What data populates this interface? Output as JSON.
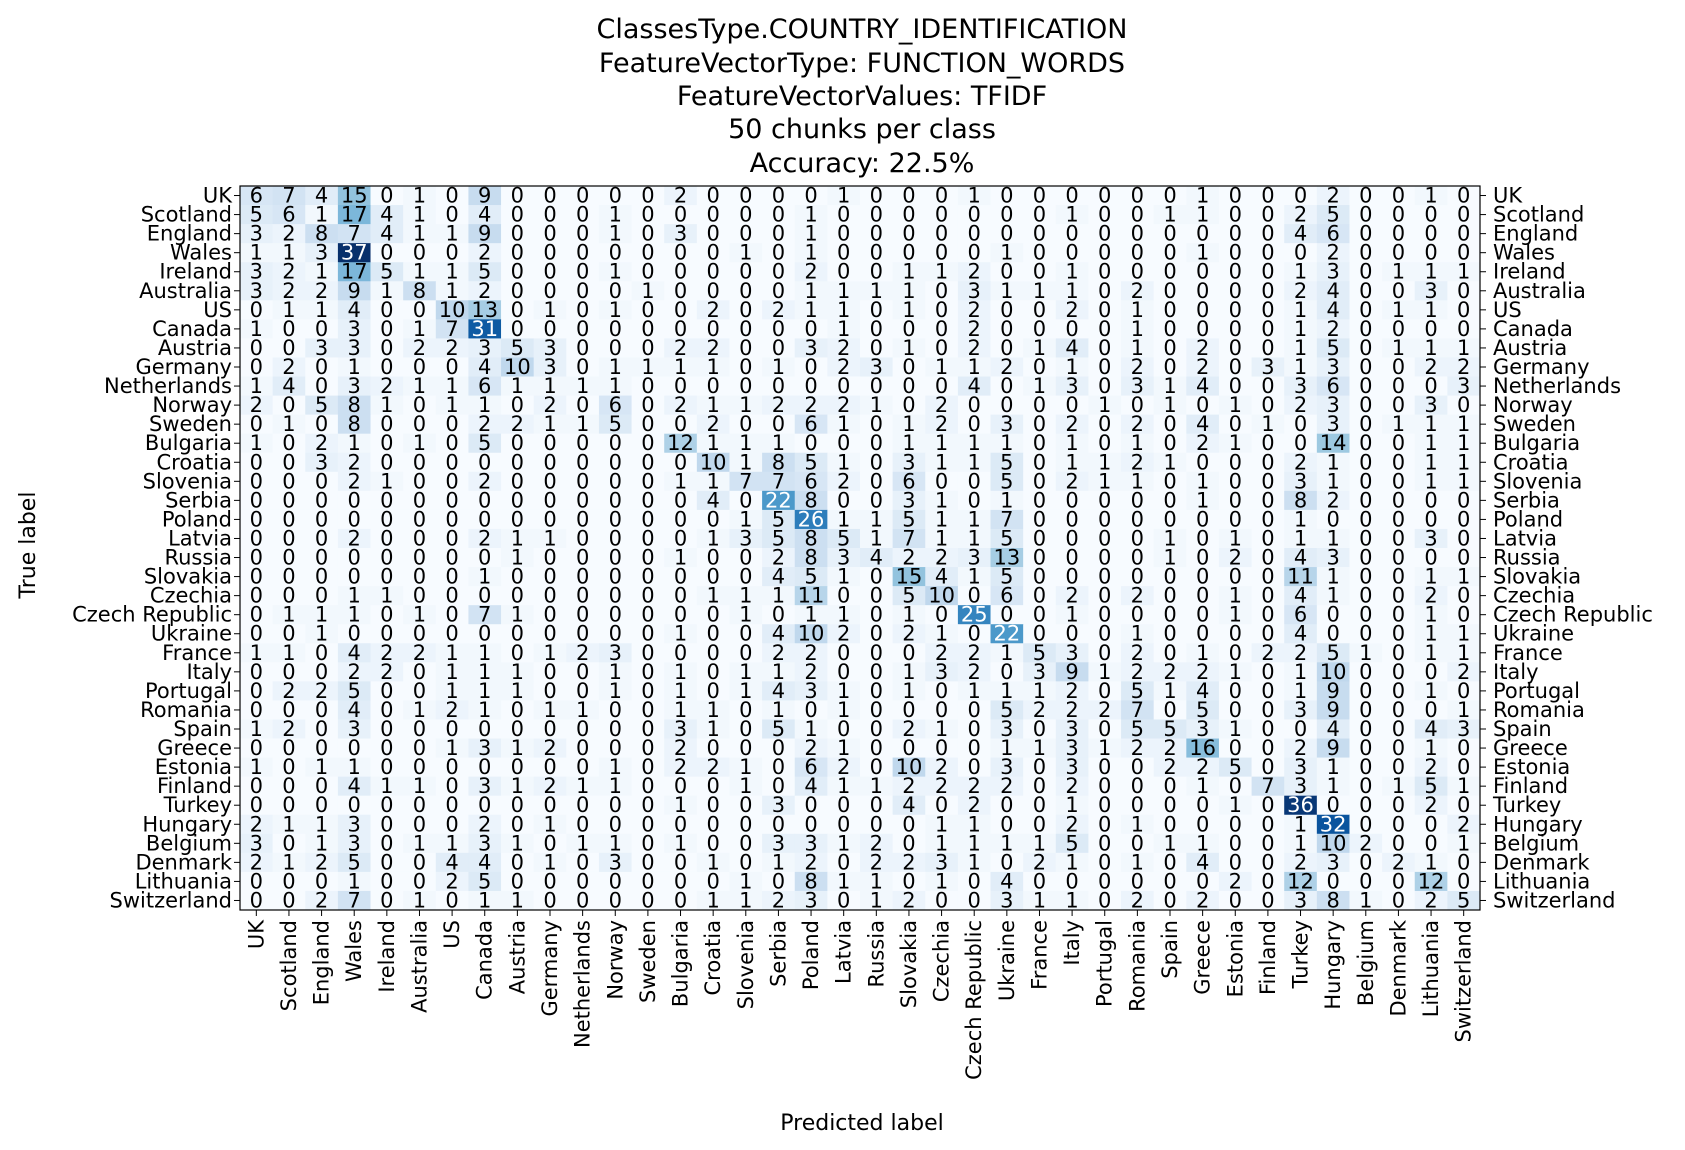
{
  "chart_data": {
    "type": "heatmap",
    "title": [
      "ClassesType.COUNTRY_IDENTIFICATION",
      "FeatureVectorType: FUNCTION_WORDS",
      "FeatureVectorValues: TFIDF",
      "50 chunks per class",
      "Accuracy: 22.5%"
    ],
    "xlabel": "Predicted label",
    "ylabel": "True label",
    "colormap": "Blues",
    "vmin": 0,
    "vmax": 37,
    "labels": [
      "UK",
      "Scotland",
      "England",
      "Wales",
      "Ireland",
      "Australia",
      "US",
      "Canada",
      "Austria",
      "Germany",
      "Netherlands",
      "Norway",
      "Sweden",
      "Bulgaria",
      "Croatia",
      "Slovenia",
      "Serbia",
      "Poland",
      "Latvia",
      "Russia",
      "Slovakia",
      "Czechia",
      "Czech Republic",
      "Ukraine",
      "France",
      "Italy",
      "Portugal",
      "Romania",
      "Spain",
      "Greece",
      "Estonia",
      "Finland",
      "Turkey",
      "Hungary",
      "Belgium",
      "Denmark",
      "Lithuania",
      "Switzerland"
    ],
    "matrix": [
      [
        6,
        7,
        4,
        15,
        0,
        1,
        0,
        9,
        0,
        0,
        0,
        0,
        0,
        2,
        0,
        0,
        0,
        0,
        1,
        0,
        0,
        0,
        1,
        0,
        0,
        0,
        0,
        0,
        0,
        1,
        0,
        0,
        0,
        2,
        0,
        0,
        1,
        0
      ],
      [
        5,
        6,
        1,
        17,
        4,
        1,
        0,
        4,
        0,
        0,
        0,
        1,
        0,
        0,
        0,
        0,
        0,
        1,
        0,
        0,
        0,
        0,
        0,
        0,
        0,
        1,
        0,
        0,
        1,
        1,
        0,
        0,
        2,
        5,
        0,
        0,
        0,
        0
      ],
      [
        3,
        2,
        8,
        7,
        4,
        1,
        1,
        9,
        0,
        0,
        0,
        1,
        0,
        3,
        0,
        0,
        0,
        1,
        0,
        0,
        0,
        0,
        0,
        0,
        0,
        0,
        0,
        0,
        0,
        0,
        0,
        0,
        4,
        6,
        0,
        0,
        0,
        0
      ],
      [
        1,
        1,
        3,
        37,
        0,
        0,
        0,
        2,
        0,
        0,
        0,
        0,
        0,
        0,
        0,
        1,
        0,
        1,
        0,
        0,
        0,
        0,
        0,
        1,
        0,
        0,
        0,
        0,
        0,
        1,
        0,
        0,
        0,
        2,
        0,
        0,
        0,
        0
      ],
      [
        3,
        2,
        1,
        17,
        5,
        1,
        1,
        5,
        0,
        0,
        0,
        1,
        0,
        0,
        0,
        0,
        0,
        2,
        0,
        0,
        1,
        1,
        2,
        0,
        0,
        1,
        0,
        0,
        0,
        0,
        0,
        0,
        1,
        3,
        0,
        1,
        1,
        1
      ],
      [
        3,
        2,
        2,
        9,
        1,
        8,
        1,
        2,
        0,
        0,
        0,
        0,
        1,
        0,
        0,
        0,
        0,
        1,
        1,
        1,
        1,
        0,
        3,
        1,
        1,
        1,
        0,
        2,
        0,
        0,
        0,
        0,
        2,
        4,
        0,
        0,
        3,
        0
      ],
      [
        0,
        1,
        1,
        4,
        0,
        0,
        10,
        13,
        0,
        1,
        0,
        1,
        0,
        0,
        2,
        0,
        2,
        1,
        1,
        0,
        1,
        0,
        2,
        0,
        0,
        2,
        0,
        1,
        0,
        0,
        0,
        0,
        1,
        4,
        0,
        1,
        1,
        0
      ],
      [
        1,
        0,
        0,
        3,
        0,
        1,
        7,
        31,
        0,
        0,
        0,
        0,
        0,
        0,
        0,
        0,
        0,
        0,
        1,
        0,
        0,
        0,
        2,
        0,
        0,
        0,
        0,
        1,
        0,
        0,
        0,
        0,
        1,
        2,
        0,
        0,
        0,
        0
      ],
      [
        0,
        0,
        3,
        3,
        0,
        2,
        2,
        3,
        5,
        3,
        0,
        0,
        0,
        2,
        2,
        0,
        0,
        3,
        2,
        0,
        1,
        0,
        2,
        0,
        1,
        4,
        0,
        1,
        0,
        2,
        0,
        0,
        1,
        5,
        0,
        1,
        1,
        1
      ],
      [
        0,
        2,
        0,
        1,
        0,
        0,
        0,
        4,
        10,
        3,
        0,
        1,
        1,
        1,
        1,
        0,
        1,
        0,
        2,
        3,
        0,
        1,
        1,
        2,
        0,
        1,
        0,
        2,
        0,
        2,
        0,
        3,
        1,
        3,
        0,
        0,
        2,
        2
      ],
      [
        1,
        4,
        0,
        3,
        2,
        1,
        1,
        6,
        1,
        1,
        1,
        1,
        0,
        0,
        0,
        0,
        0,
        0,
        0,
        0,
        0,
        0,
        4,
        0,
        1,
        3,
        0,
        3,
        1,
        4,
        0,
        0,
        3,
        6,
        0,
        0,
        0,
        3
      ],
      [
        2,
        0,
        5,
        8,
        1,
        0,
        1,
        1,
        0,
        2,
        0,
        6,
        0,
        2,
        1,
        1,
        2,
        2,
        2,
        1,
        0,
        2,
        0,
        0,
        0,
        0,
        1,
        0,
        1,
        0,
        1,
        0,
        2,
        3,
        0,
        0,
        3,
        0
      ],
      [
        0,
        1,
        0,
        8,
        0,
        0,
        0,
        2,
        2,
        1,
        1,
        5,
        0,
        0,
        2,
        0,
        0,
        6,
        1,
        0,
        1,
        2,
        0,
        3,
        0,
        2,
        0,
        2,
        0,
        4,
        0,
        1,
        0,
        3,
        0,
        1,
        1,
        1
      ],
      [
        1,
        0,
        2,
        1,
        0,
        1,
        0,
        5,
        0,
        0,
        0,
        0,
        0,
        12,
        1,
        1,
        1,
        0,
        0,
        0,
        1,
        1,
        1,
        1,
        0,
        1,
        0,
        1,
        0,
        2,
        1,
        0,
        0,
        14,
        0,
        0,
        1,
        1
      ],
      [
        0,
        0,
        3,
        2,
        0,
        0,
        0,
        0,
        0,
        0,
        0,
        0,
        0,
        0,
        10,
        1,
        8,
        5,
        1,
        0,
        3,
        1,
        1,
        5,
        0,
        1,
        1,
        2,
        1,
        0,
        0,
        0,
        2,
        1,
        0,
        0,
        1,
        1
      ],
      [
        0,
        0,
        0,
        2,
        1,
        0,
        0,
        2,
        0,
        0,
        0,
        0,
        0,
        1,
        1,
        7,
        7,
        6,
        2,
        0,
        6,
        0,
        0,
        5,
        0,
        2,
        1,
        1,
        0,
        1,
        0,
        0,
        3,
        1,
        0,
        0,
        1,
        1
      ],
      [
        0,
        0,
        0,
        0,
        0,
        0,
        0,
        0,
        0,
        0,
        0,
        0,
        0,
        0,
        4,
        0,
        22,
        8,
        0,
        0,
        3,
        1,
        0,
        1,
        0,
        0,
        0,
        0,
        0,
        1,
        0,
        0,
        8,
        2,
        0,
        0,
        0,
        0
      ],
      [
        0,
        0,
        0,
        0,
        0,
        0,
        0,
        0,
        0,
        0,
        0,
        0,
        0,
        0,
        0,
        1,
        5,
        26,
        1,
        1,
        5,
        1,
        1,
        7,
        0,
        0,
        0,
        0,
        0,
        0,
        0,
        0,
        1,
        0,
        0,
        0,
        0,
        0
      ],
      [
        0,
        0,
        0,
        2,
        0,
        0,
        0,
        2,
        1,
        1,
        0,
        0,
        0,
        0,
        1,
        3,
        5,
        8,
        5,
        1,
        7,
        1,
        1,
        5,
        0,
        0,
        0,
        0,
        1,
        0,
        1,
        0,
        1,
        1,
        0,
        0,
        3,
        0
      ],
      [
        0,
        0,
        0,
        0,
        0,
        0,
        0,
        0,
        1,
        0,
        0,
        0,
        0,
        1,
        0,
        0,
        2,
        8,
        3,
        4,
        2,
        2,
        3,
        13,
        0,
        0,
        0,
        0,
        1,
        0,
        2,
        0,
        4,
        3,
        0,
        0,
        0,
        0
      ],
      [
        0,
        0,
        0,
        0,
        0,
        0,
        0,
        1,
        0,
        0,
        0,
        0,
        0,
        0,
        0,
        0,
        4,
        5,
        1,
        0,
        15,
        4,
        1,
        5,
        0,
        0,
        0,
        0,
        0,
        0,
        0,
        0,
        11,
        1,
        0,
        0,
        1,
        1
      ],
      [
        0,
        0,
        0,
        1,
        1,
        0,
        0,
        0,
        0,
        0,
        0,
        0,
        0,
        0,
        1,
        1,
        1,
        11,
        0,
        0,
        5,
        10,
        0,
        6,
        0,
        2,
        0,
        2,
        0,
        0,
        1,
        0,
        4,
        1,
        0,
        0,
        2,
        0
      ],
      [
        0,
        1,
        1,
        1,
        0,
        1,
        0,
        7,
        1,
        0,
        0,
        0,
        0,
        0,
        0,
        1,
        0,
        1,
        1,
        0,
        1,
        0,
        25,
        0,
        0,
        1,
        0,
        0,
        0,
        0,
        1,
        0,
        6,
        0,
        0,
        0,
        1,
        0
      ],
      [
        0,
        0,
        1,
        0,
        0,
        0,
        0,
        0,
        0,
        0,
        0,
        0,
        0,
        1,
        0,
        0,
        4,
        10,
        2,
        0,
        2,
        1,
        0,
        22,
        0,
        0,
        0,
        1,
        0,
        0,
        0,
        0,
        4,
        0,
        0,
        0,
        1,
        1
      ],
      [
        1,
        1,
        0,
        4,
        2,
        2,
        1,
        1,
        0,
        1,
        2,
        3,
        0,
        0,
        0,
        0,
        2,
        2,
        0,
        0,
        0,
        2,
        2,
        1,
        5,
        3,
        0,
        2,
        0,
        1,
        0,
        2,
        2,
        5,
        1,
        0,
        1,
        1
      ],
      [
        0,
        0,
        0,
        2,
        2,
        0,
        1,
        1,
        1,
        0,
        0,
        1,
        0,
        1,
        0,
        1,
        1,
        2,
        0,
        0,
        1,
        3,
        2,
        0,
        3,
        9,
        1,
        2,
        2,
        2,
        1,
        0,
        1,
        10,
        0,
        0,
        0,
        2
      ],
      [
        0,
        2,
        2,
        5,
        0,
        0,
        1,
        1,
        1,
        0,
        0,
        1,
        0,
        1,
        0,
        1,
        4,
        3,
        1,
        0,
        1,
        0,
        1,
        1,
        1,
        2,
        0,
        5,
        1,
        4,
        0,
        0,
        1,
        9,
        0,
        0,
        1,
        0
      ],
      [
        0,
        0,
        0,
        4,
        0,
        1,
        2,
        1,
        0,
        1,
        1,
        0,
        0,
        1,
        1,
        0,
        1,
        0,
        1,
        0,
        0,
        0,
        0,
        5,
        2,
        2,
        2,
        7,
        0,
        5,
        0,
        0,
        3,
        9,
        0,
        0,
        0,
        1
      ],
      [
        1,
        2,
        0,
        3,
        0,
        0,
        0,
        0,
        0,
        0,
        0,
        0,
        0,
        3,
        1,
        0,
        5,
        1,
        0,
        0,
        2,
        1,
        0,
        3,
        0,
        3,
        0,
        5,
        5,
        3,
        1,
        0,
        0,
        4,
        0,
        0,
        4,
        3
      ],
      [
        0,
        0,
        0,
        0,
        0,
        0,
        1,
        3,
        1,
        2,
        0,
        0,
        0,
        2,
        0,
        0,
        0,
        2,
        1,
        0,
        0,
        0,
        0,
        1,
        1,
        3,
        1,
        2,
        2,
        16,
        0,
        0,
        2,
        9,
        0,
        0,
        1,
        0
      ],
      [
        1,
        0,
        1,
        1,
        0,
        0,
        0,
        0,
        0,
        0,
        0,
        1,
        0,
        2,
        2,
        1,
        0,
        6,
        2,
        0,
        10,
        2,
        0,
        3,
        0,
        3,
        0,
        0,
        2,
        2,
        5,
        0,
        3,
        1,
        0,
        0,
        2,
        0
      ],
      [
        0,
        0,
        0,
        4,
        1,
        1,
        0,
        3,
        1,
        2,
        1,
        1,
        0,
        0,
        0,
        1,
        0,
        4,
        1,
        1,
        2,
        2,
        2,
        2,
        0,
        2,
        0,
        0,
        0,
        1,
        0,
        7,
        3,
        1,
        0,
        1,
        5,
        1
      ],
      [
        0,
        0,
        0,
        0,
        0,
        0,
        0,
        0,
        0,
        0,
        0,
        0,
        0,
        1,
        0,
        0,
        3,
        0,
        0,
        0,
        4,
        0,
        2,
        0,
        0,
        1,
        0,
        0,
        0,
        0,
        1,
        0,
        36,
        0,
        0,
        0,
        2,
        0
      ],
      [
        2,
        1,
        1,
        3,
        0,
        0,
        0,
        2,
        0,
        1,
        0,
        0,
        0,
        0,
        0,
        0,
        0,
        0,
        0,
        0,
        0,
        1,
        1,
        0,
        0,
        2,
        0,
        1,
        0,
        0,
        0,
        0,
        1,
        32,
        0,
        0,
        0,
        2
      ],
      [
        3,
        0,
        1,
        3,
        0,
        1,
        1,
        3,
        1,
        0,
        1,
        1,
        0,
        1,
        0,
        0,
        3,
        3,
        1,
        2,
        0,
        1,
        1,
        1,
        1,
        5,
        0,
        0,
        1,
        1,
        0,
        0,
        1,
        10,
        2,
        0,
        0,
        1
      ],
      [
        2,
        1,
        2,
        5,
        0,
        0,
        4,
        4,
        0,
        1,
        0,
        3,
        0,
        0,
        1,
        0,
        1,
        2,
        0,
        2,
        2,
        3,
        1,
        0,
        2,
        1,
        0,
        1,
        0,
        4,
        0,
        0,
        2,
        3,
        0,
        2,
        1,
        0
      ],
      [
        0,
        0,
        0,
        1,
        0,
        0,
        2,
        5,
        0,
        0,
        0,
        0,
        0,
        0,
        0,
        1,
        0,
        8,
        1,
        1,
        0,
        1,
        0,
        4,
        0,
        0,
        0,
        0,
        0,
        0,
        2,
        0,
        12,
        0,
        0,
        0,
        12,
        0
      ],
      [
        0,
        0,
        2,
        7,
        0,
        1,
        0,
        1,
        1,
        0,
        0,
        0,
        0,
        0,
        1,
        1,
        2,
        3,
        0,
        1,
        2,
        0,
        0,
        3,
        1,
        1,
        0,
        2,
        0,
        2,
        0,
        0,
        3,
        8,
        1,
        0,
        2,
        5
      ]
    ]
  }
}
